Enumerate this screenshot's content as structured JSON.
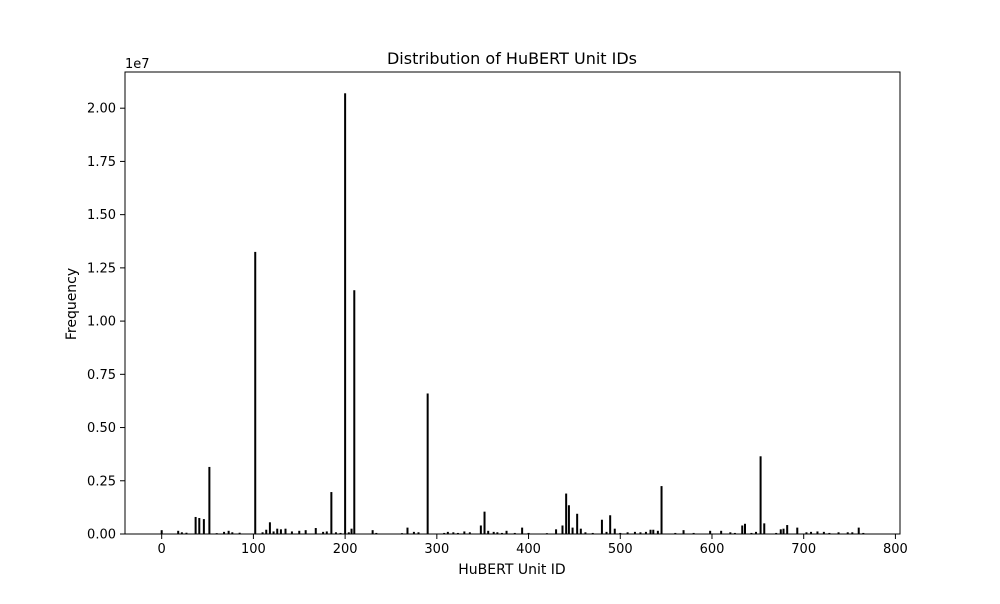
{
  "chart_data": {
    "type": "bar",
    "title": "Distribution of HuBERT Unit IDs",
    "xlabel": "HuBERT Unit ID",
    "ylabel": "Frequency",
    "y_offset_label": "1e7",
    "y_scale_factor": 10000000,
    "xlim": [
      -40,
      805
    ],
    "ylim": [
      0,
      2.17
    ],
    "x_ticks": [
      0,
      100,
      200,
      300,
      400,
      500,
      600,
      700,
      800
    ],
    "y_ticks": [
      0.0,
      0.25,
      0.5,
      0.75,
      1.0,
      1.25,
      1.5,
      1.75,
      2.0
    ],
    "y_tick_labels": [
      "0.00",
      "0.25",
      "0.50",
      "0.75",
      "1.00",
      "1.25",
      "1.50",
      "1.75",
      "2.00"
    ],
    "grid": false,
    "bar_color": "#000000",
    "x": [
      0,
      18,
      22,
      27,
      37,
      41,
      46,
      52,
      60,
      68,
      73,
      77,
      85,
      102,
      110,
      114,
      118,
      122,
      126,
      130,
      135,
      142,
      150,
      157,
      168,
      176,
      180,
      185,
      190,
      195,
      200,
      204,
      207,
      210,
      230,
      234,
      262,
      268,
      275,
      280,
      290,
      308,
      312,
      318,
      323,
      330,
      336,
      348,
      352,
      356,
      362,
      366,
      371,
      376,
      385,
      393,
      400,
      420,
      430,
      437,
      441,
      444,
      448,
      453,
      457,
      462,
      470,
      480,
      485,
      489,
      494,
      500,
      508,
      516,
      522,
      528,
      533,
      536,
      541,
      545,
      560,
      569,
      580,
      598,
      610,
      620,
      625,
      633,
      636,
      643,
      648,
      653,
      657,
      670,
      675,
      678,
      682,
      693,
      703,
      708,
      715,
      722,
      728,
      738,
      748,
      753,
      760,
      765
    ],
    "values": [
      0.018,
      0.015,
      0.008,
      0.006,
      0.08,
      0.075,
      0.07,
      0.315,
      0.004,
      0.01,
      0.015,
      0.008,
      0.006,
      1.325,
      0.008,
      0.02,
      0.055,
      0.012,
      0.025,
      0.022,
      0.025,
      0.012,
      0.015,
      0.018,
      0.028,
      0.01,
      0.012,
      0.197,
      0.008,
      0.005,
      2.07,
      0.008,
      0.025,
      1.145,
      0.018,
      0.005,
      0.004,
      0.03,
      0.01,
      0.008,
      0.66,
      0.005,
      0.01,
      0.008,
      0.005,
      0.012,
      0.008,
      0.04,
      0.105,
      0.015,
      0.01,
      0.008,
      0.005,
      0.015,
      0.005,
      0.03,
      0.005,
      0.004,
      0.022,
      0.04,
      0.19,
      0.135,
      0.03,
      0.095,
      0.025,
      0.008,
      0.005,
      0.067,
      0.01,
      0.088,
      0.025,
      0.005,
      0.008,
      0.01,
      0.008,
      0.01,
      0.02,
      0.02,
      0.015,
      0.225,
      0.005,
      0.018,
      0.005,
      0.015,
      0.015,
      0.008,
      0.005,
      0.04,
      0.048,
      0.005,
      0.01,
      0.365,
      0.05,
      0.005,
      0.022,
      0.025,
      0.042,
      0.03,
      0.008,
      0.01,
      0.012,
      0.01,
      0.005,
      0.008,
      0.008,
      0.008,
      0.03,
      0.005
    ]
  }
}
